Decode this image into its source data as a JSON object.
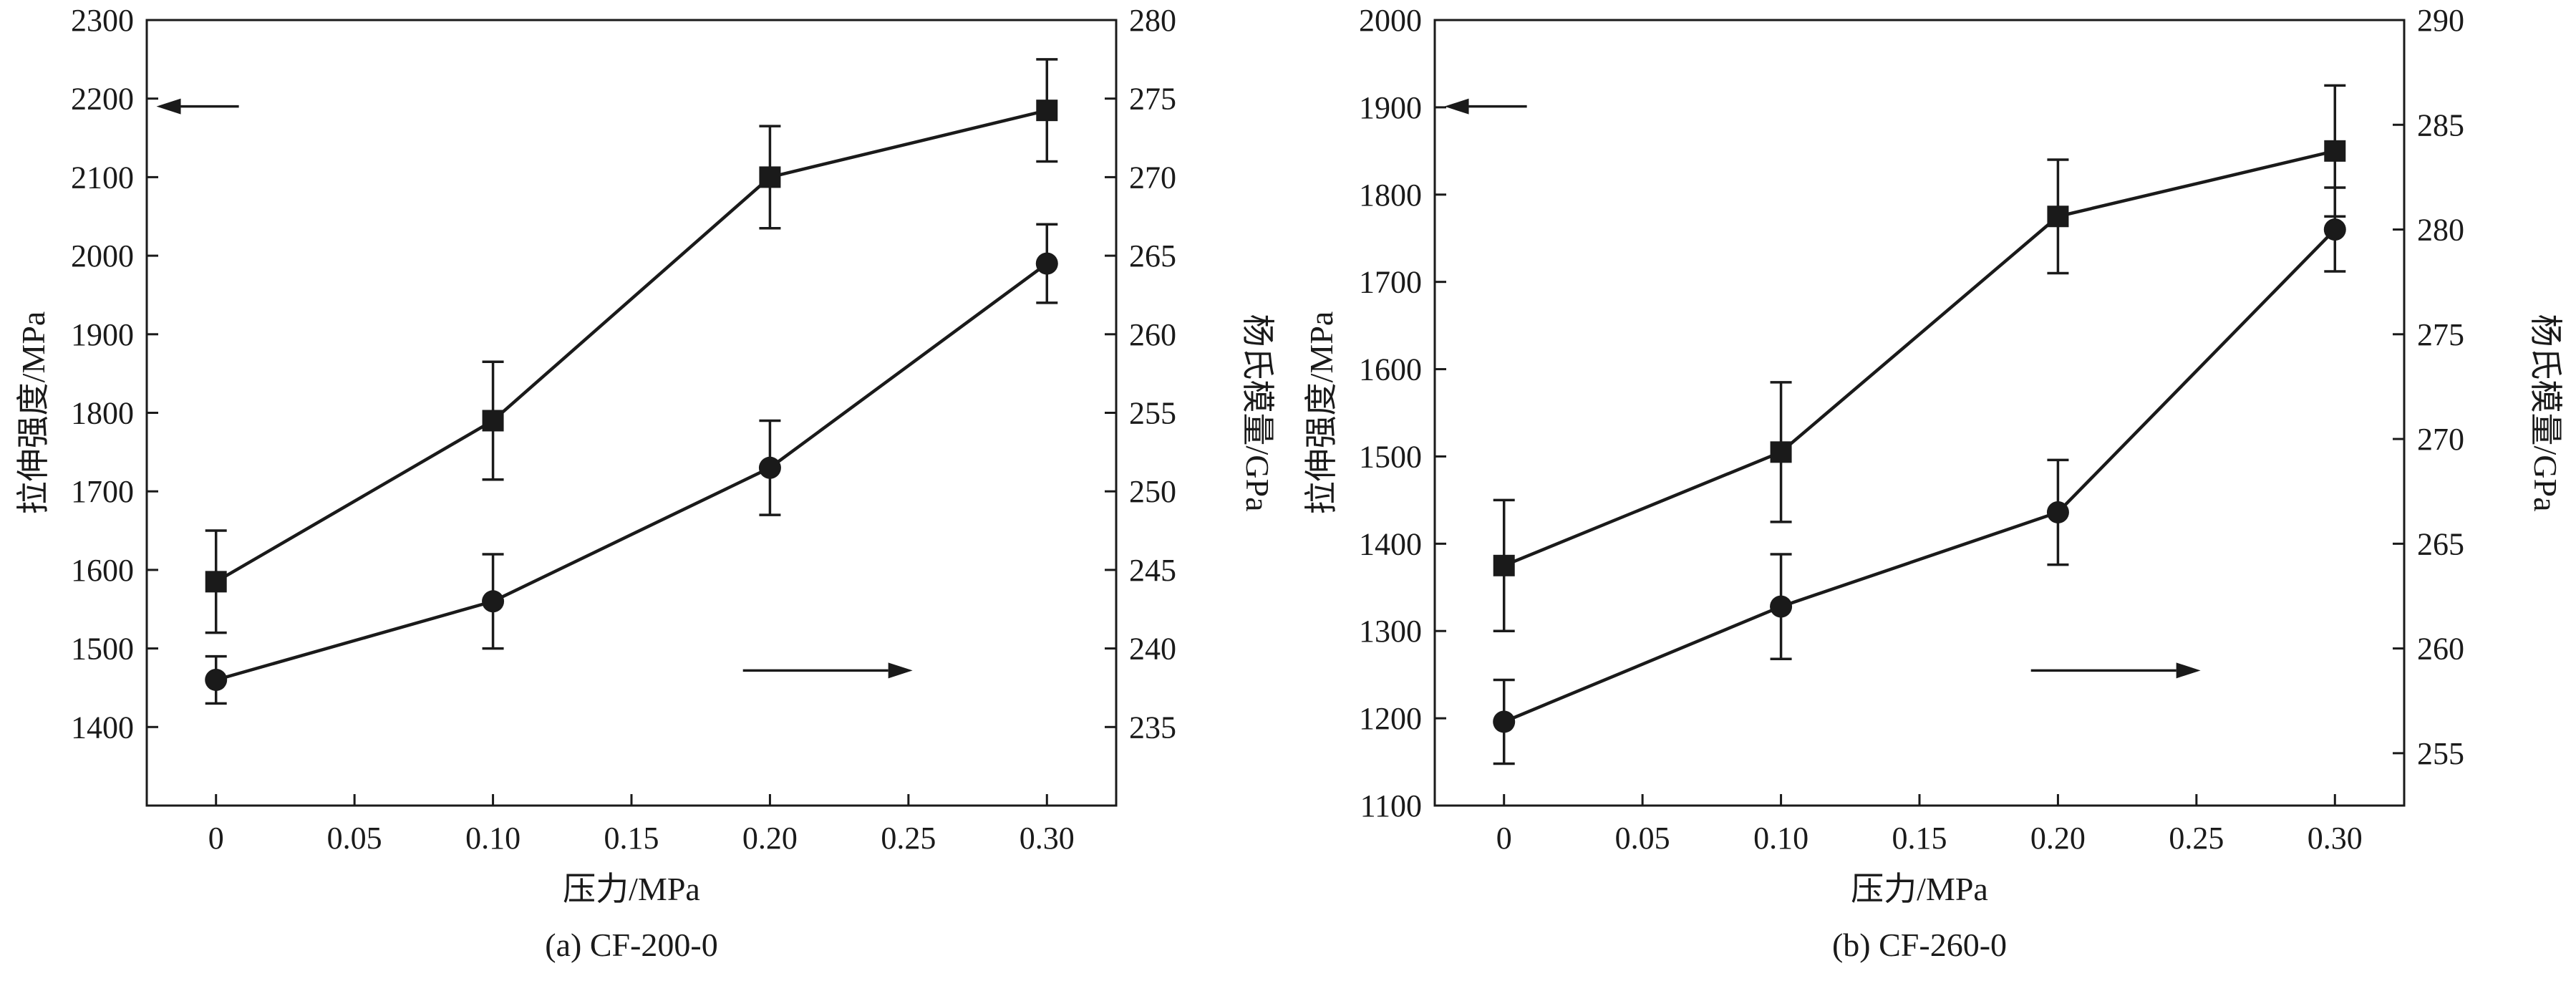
{
  "styles": {
    "ink_color": "#1a1a1a",
    "background": "#ffffff"
  },
  "chart_data": [
    {
      "type": "line",
      "caption": "(a) CF-200-0",
      "xlabel": "压力/MPa",
      "ylabel_left": "拉伸强度/MPa",
      "ylabel_right": "杨氏模量/GPa",
      "xlim": [
        -0.025,
        0.325
      ],
      "x_ticks": [
        0,
        0.05,
        0.1,
        0.15,
        0.2,
        0.25,
        0.3
      ],
      "x_tick_labels": [
        "0",
        "0.05",
        "0.10",
        "0.15",
        "0.20",
        "0.25",
        "0.30"
      ],
      "ylim_left": [
        1300,
        2300
      ],
      "yticks_left": [
        1400,
        1500,
        1600,
        1700,
        1800,
        1900,
        2000,
        2100,
        2200,
        2300
      ],
      "ylim_right": [
        230,
        280
      ],
      "yticks_right": [
        235,
        240,
        245,
        250,
        255,
        260,
        265,
        270,
        275,
        280
      ],
      "grid": false,
      "legend": "none",
      "series": [
        {
          "name": "tensile-strength",
          "axis": "left",
          "marker": "square",
          "x": [
            0,
            0.1,
            0.2,
            0.3
          ],
          "y": [
            1585,
            1790,
            2100,
            2185
          ],
          "yerr": [
            65,
            75,
            65,
            65
          ]
        },
        {
          "name": "youngs-modulus",
          "axis": "right",
          "marker": "circle",
          "x": [
            0,
            0.1,
            0.2,
            0.3
          ],
          "y": [
            238,
            243,
            251.5,
            264.5
          ],
          "yerr": [
            1.5,
            3,
            3,
            2.5
          ]
        }
      ],
      "annotations": [
        {
          "type": "arrow",
          "direction": "left",
          "points_to": "left-axis-tensile-strength",
          "x_tail": 0.095,
          "x_head": 0.01,
          "y": 0.11
        },
        {
          "type": "arrow",
          "direction": "right",
          "points_to": "right-axis-youngs-modulus",
          "x_tail": 0.615,
          "x_head": 0.79,
          "y": 0.828
        }
      ]
    },
    {
      "type": "line",
      "caption": "(b) CF-260-0",
      "xlabel": "压力/MPa",
      "ylabel_left": "拉伸强度/MPa",
      "ylabel_right": "杨氏模量/GPa",
      "xlim": [
        -0.025,
        0.325
      ],
      "x_ticks": [
        0,
        0.05,
        0.1,
        0.15,
        0.2,
        0.25,
        0.3
      ],
      "x_tick_labels": [
        "0",
        "0.05",
        "0.10",
        "0.15",
        "0.20",
        "0.25",
        "0.30"
      ],
      "ylim_left": [
        1100,
        2000
      ],
      "yticks_left": [
        1100,
        1200,
        1300,
        1400,
        1500,
        1600,
        1700,
        1800,
        1900,
        2000
      ],
      "ylim_right": [
        252.5,
        290
      ],
      "yticks_right": [
        255,
        260,
        265,
        270,
        275,
        280,
        285,
        290
      ],
      "grid": false,
      "legend": "none",
      "series": [
        {
          "name": "tensile-strength",
          "axis": "left",
          "marker": "square",
          "x": [
            0,
            0.1,
            0.2,
            0.3
          ],
          "y": [
            1375,
            1505,
            1775,
            1850
          ],
          "yerr": [
            75,
            80,
            65,
            75
          ]
        },
        {
          "name": "youngs-modulus",
          "axis": "right",
          "marker": "circle",
          "x": [
            0,
            0.1,
            0.2,
            0.3
          ],
          "y": [
            256.5,
            262,
            266.5,
            280
          ],
          "yerr": [
            2,
            2.5,
            2.5,
            2
          ]
        }
      ],
      "annotations": [
        {
          "type": "arrow",
          "direction": "left",
          "points_to": "left-axis-tensile-strength",
          "x_tail": 0.095,
          "x_head": 0.01,
          "y": 0.11
        },
        {
          "type": "arrow",
          "direction": "right",
          "points_to": "right-axis-youngs-modulus",
          "x_tail": 0.615,
          "x_head": 0.79,
          "y": 0.828
        }
      ]
    }
  ]
}
